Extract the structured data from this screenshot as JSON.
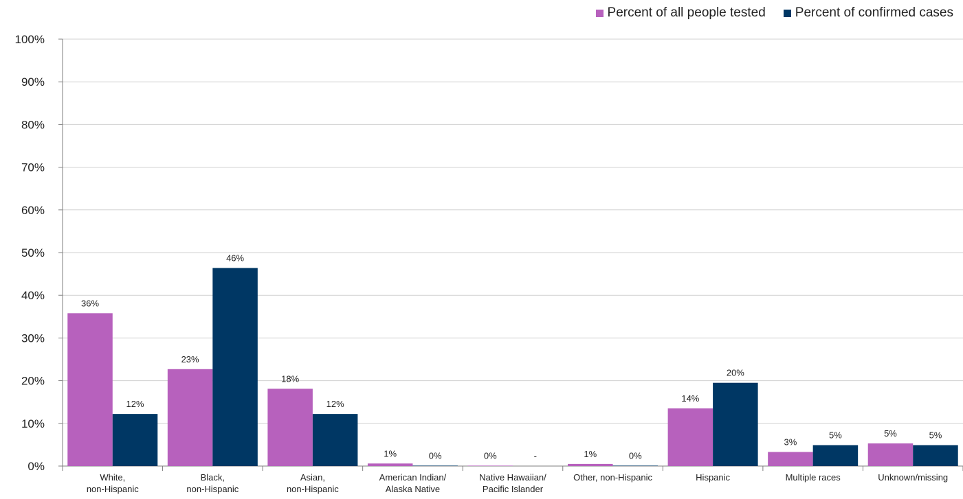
{
  "chart_data": {
    "type": "bar",
    "title": "",
    "xlabel": "",
    "ylabel": "",
    "ylim": [
      0,
      100
    ],
    "yticks": [
      "0%",
      "10%",
      "20%",
      "30%",
      "40%",
      "50%",
      "60%",
      "70%",
      "80%",
      "90%",
      "100%"
    ],
    "grid": true,
    "legend_position": "top-right",
    "categories": [
      [
        "White,",
        "non-Hispanic"
      ],
      [
        "Black,",
        "non-Hispanic"
      ],
      [
        "Asian,",
        "non-Hispanic"
      ],
      [
        "American Indian/",
        "Alaska Native"
      ],
      [
        "Native Hawaiian/",
        "Pacific Islander"
      ],
      [
        "Other, non-Hispanic"
      ],
      [
        "Hispanic"
      ],
      [
        "Multiple races"
      ],
      [
        "Unknown/missing"
      ]
    ],
    "series": [
      {
        "name": "Percent of all people tested",
        "color": "#B761BD",
        "values": [
          35.8,
          22.7,
          18.1,
          0.6,
          0.1,
          0.5,
          13.5,
          3.3,
          5.3
        ],
        "labels": [
          "36%",
          "23%",
          "18%",
          "1%",
          "0%",
          "1%",
          "14%",
          "3%",
          "5%"
        ]
      },
      {
        "name": "Percent of confirmed cases",
        "color": "#003764",
        "values": [
          12.2,
          46.4,
          12.2,
          0.1,
          0,
          0.1,
          19.5,
          4.9,
          4.9
        ],
        "labels": [
          "12%",
          "46%",
          "12%",
          "0%",
          "-",
          "0%",
          "20%",
          "5%",
          "5%"
        ]
      }
    ]
  }
}
